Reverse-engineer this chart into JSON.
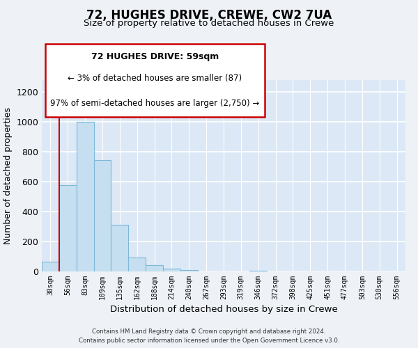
{
  "title": "72, HUGHES DRIVE, CREWE, CW2 7UA",
  "subtitle": "Size of property relative to detached houses in Crewe",
  "xlabel": "Distribution of detached houses by size in Crewe",
  "ylabel": "Number of detached properties",
  "bar_labels": [
    "30sqm",
    "56sqm",
    "83sqm",
    "109sqm",
    "135sqm",
    "162sqm",
    "188sqm",
    "214sqm",
    "240sqm",
    "267sqm",
    "293sqm",
    "319sqm",
    "346sqm",
    "372sqm",
    "398sqm",
    "425sqm",
    "451sqm",
    "477sqm",
    "503sqm",
    "530sqm",
    "556sqm"
  ],
  "bar_heights": [
    65,
    575,
    1000,
    745,
    310,
    95,
    40,
    20,
    10,
    0,
    0,
    0,
    5,
    0,
    0,
    0,
    0,
    0,
    0,
    0,
    0
  ],
  "bar_color": "#c6dff0",
  "bar_edge_color": "#7db8d8",
  "ylim": [
    0,
    1280
  ],
  "yticks": [
    0,
    200,
    400,
    600,
    800,
    1000,
    1200
  ],
  "annotation_title": "72 HUGHES DRIVE: 59sqm",
  "annotation_line1": "← 3% of detached houses are smaller (87)",
  "annotation_line2": "97% of semi-detached houses are larger (2,750) →",
  "footer_line1": "Contains HM Land Registry data © Crown copyright and database right 2024.",
  "footer_line2": "Contains public sector information licensed under the Open Government Licence v3.0.",
  "red_line_color": "#cc0000",
  "annotation_border_color": "#cc0000",
  "background_color": "#eef2f7",
  "plot_bg_color": "#dce8f5"
}
